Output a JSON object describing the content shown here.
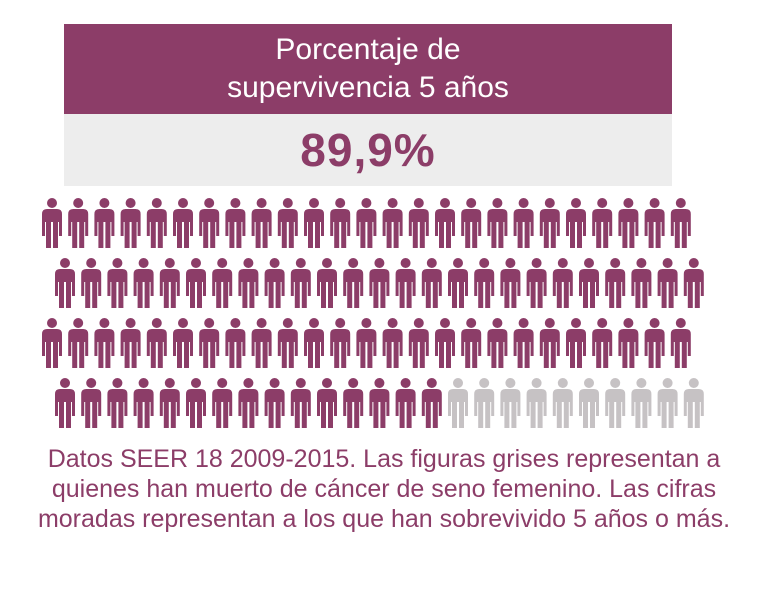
{
  "title_line1": "Porcentaje de",
  "title_line2": "supervivencia 5 años",
  "value_text": "89,9%",
  "caption": "Datos SEER 18 2009-2015. Las figuras grises representan a quienes han muerto de cáncer de seno femenino. Las cifras moradas representan a los que han sobrevivido 5 años o más.",
  "colors": {
    "survived": "#8c3d68",
    "died": "#c6c2c4",
    "header_bg": "#8c3d68",
    "value_bg": "#ededed"
  },
  "chart_data": {
    "type": "pictograph",
    "survival_percent": 89.9,
    "series": [
      {
        "color": "#8c3d68"
      },
      {
        "color": "#c6c2c4"
      }
    ]
  }
}
